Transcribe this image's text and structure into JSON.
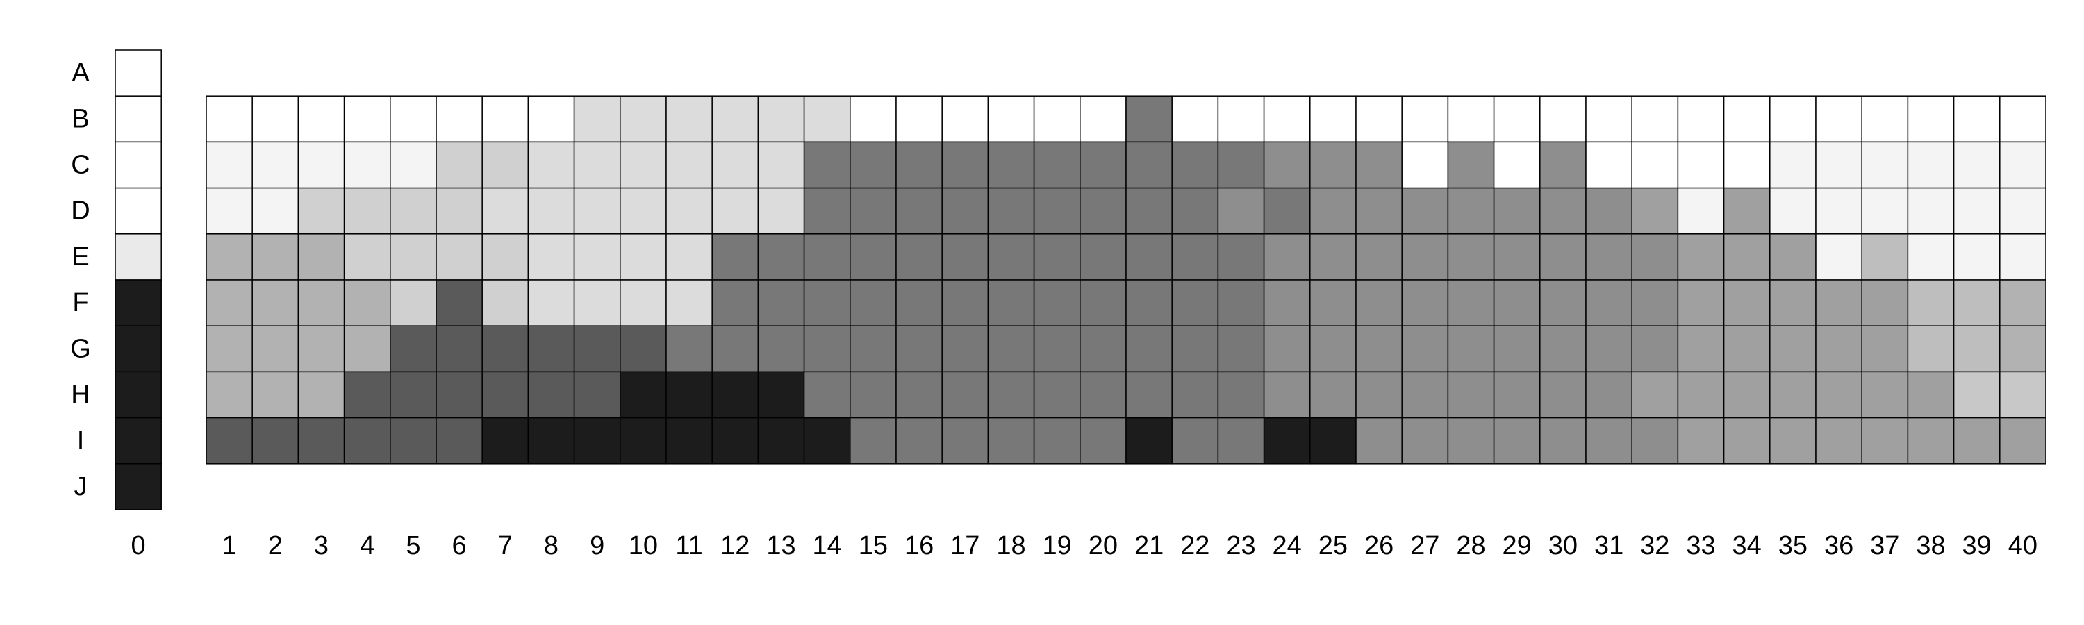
{
  "chart_data": {
    "type": "heatmap",
    "title": "",
    "xlabel": "",
    "ylabel": "",
    "rows": [
      "A",
      "B",
      "C",
      "D",
      "E",
      "F",
      "G",
      "H",
      "I",
      "J"
    ],
    "reference_column": {
      "label": "0",
      "values": [
        255,
        255,
        255,
        255,
        234,
        28,
        28,
        28,
        28,
        28
      ]
    },
    "columns": [
      "1",
      "2",
      "3",
      "4",
      "5",
      "6",
      "7",
      "8",
      "9",
      "10",
      "11",
      "12",
      "13",
      "14",
      "15",
      "16",
      "17",
      "18",
      "19",
      "20",
      "21",
      "22",
      "23",
      "24",
      "25",
      "26",
      "27",
      "28",
      "29",
      "30",
      "31",
      "32",
      "33",
      "34",
      "35",
      "36",
      "37",
      "38",
      "39",
      "40"
    ],
    "grid_rows": [
      "B",
      "C",
      "D",
      "E",
      "F",
      "G",
      "H",
      "I"
    ],
    "values": [
      [
        255,
        255,
        255,
        255,
        255,
        255,
        255,
        255,
        220,
        220,
        220,
        220,
        220,
        220,
        255,
        255,
        255,
        255,
        255,
        255,
        120,
        255,
        255,
        255,
        255,
        255,
        255,
        255,
        255,
        255,
        255,
        255,
        255,
        255,
        255,
        255,
        255,
        255,
        255,
        255
      ],
      [
        244,
        244,
        244,
        244,
        244,
        208,
        208,
        220,
        220,
        220,
        220,
        220,
        220,
        120,
        120,
        120,
        120,
        120,
        120,
        120,
        120,
        120,
        120,
        142,
        142,
        142,
        255,
        142,
        255,
        142,
        255,
        255,
        255,
        255,
        244,
        244,
        244,
        244,
        244,
        244
      ],
      [
        244,
        244,
        208,
        208,
        208,
        208,
        220,
        220,
        220,
        220,
        220,
        220,
        220,
        120,
        120,
        120,
        120,
        120,
        120,
        120,
        120,
        120,
        142,
        120,
        142,
        142,
        142,
        142,
        142,
        142,
        142,
        160,
        244,
        160,
        244,
        244,
        244,
        244,
        244,
        244
      ],
      [
        178,
        178,
        178,
        208,
        208,
        208,
        208,
        220,
        220,
        220,
        220,
        120,
        120,
        120,
        120,
        120,
        120,
        120,
        120,
        120,
        120,
        120,
        120,
        142,
        142,
        142,
        142,
        142,
        142,
        142,
        142,
        142,
        160,
        160,
        160,
        244,
        190,
        244,
        244,
        244
      ],
      [
        178,
        178,
        178,
        178,
        208,
        90,
        208,
        220,
        220,
        220,
        220,
        120,
        120,
        120,
        120,
        120,
        120,
        120,
        120,
        120,
        120,
        120,
        120,
        142,
        142,
        142,
        142,
        142,
        142,
        142,
        142,
        142,
        160,
        160,
        160,
        160,
        160,
        190,
        190,
        178
      ],
      [
        178,
        178,
        178,
        178,
        90,
        90,
        90,
        90,
        90,
        90,
        120,
        120,
        120,
        120,
        120,
        120,
        120,
        120,
        120,
        120,
        120,
        120,
        120,
        142,
        142,
        142,
        142,
        142,
        142,
        142,
        142,
        142,
        160,
        160,
        160,
        160,
        160,
        190,
        190,
        178
      ],
      [
        178,
        178,
        178,
        90,
        90,
        90,
        90,
        90,
        90,
        28,
        28,
        28,
        28,
        120,
        120,
        120,
        120,
        120,
        120,
        120,
        120,
        120,
        120,
        142,
        142,
        142,
        142,
        142,
        142,
        142,
        142,
        160,
        160,
        160,
        160,
        160,
        160,
        160,
        200,
        200
      ],
      [
        90,
        90,
        90,
        90,
        90,
        90,
        28,
        28,
        28,
        28,
        28,
        28,
        28,
        28,
        120,
        120,
        120,
        120,
        120,
        120,
        28,
        120,
        120,
        28,
        28,
        142,
        142,
        142,
        142,
        142,
        142,
        142,
        160,
        160,
        160,
        160,
        160,
        160,
        160,
        160
      ]
    ]
  }
}
